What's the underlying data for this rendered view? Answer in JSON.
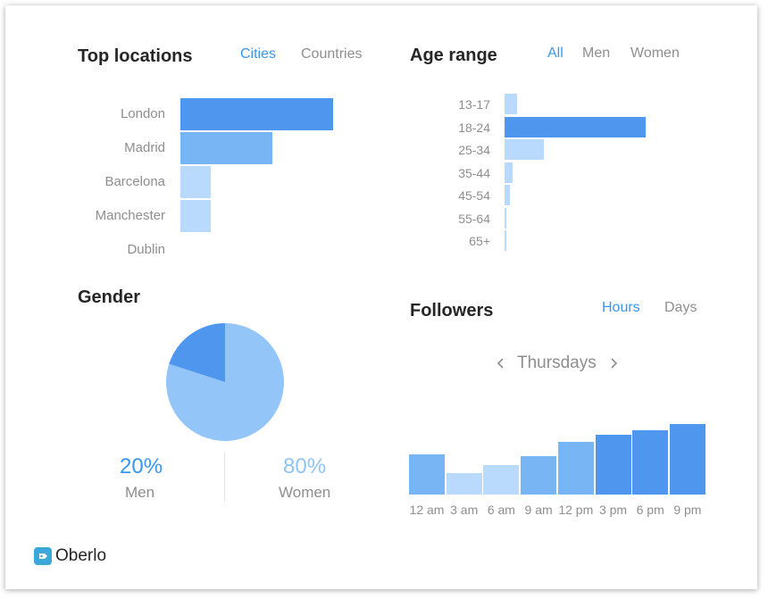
{
  "top_locations": {
    "title": "Top locations",
    "tabs": [
      {
        "label": "Cities",
        "active": true
      },
      {
        "label": "Countries",
        "active": false
      }
    ]
  },
  "age_range": {
    "title": "Age range",
    "tabs": [
      {
        "label": "All",
        "active": true
      },
      {
        "label": "Men",
        "active": false
      },
      {
        "label": "Women",
        "active": false
      }
    ]
  },
  "gender": {
    "title": "Gender",
    "men_pct": "20%",
    "men_label": "Men",
    "women_pct": "80%",
    "women_label": "Women"
  },
  "followers": {
    "title": "Followers",
    "tabs": [
      {
        "label": "Hours",
        "active": true
      },
      {
        "label": "Days",
        "active": false
      }
    ],
    "day": "Thursdays",
    "prev_icon": "chevron-left-icon",
    "next_icon": "chevron-right-icon"
  },
  "brand": {
    "name": "Oberlo",
    "icon": "tag-logo-icon",
    "color": "#3aa8d8"
  },
  "colors": {
    "accent": "#3897f0",
    "dark_blue": "#4f97ee",
    "mid_blue": "#78b5f5",
    "light_blue": "#b9dafc"
  },
  "chart_data": [
    {
      "type": "bar",
      "orientation": "horizontal",
      "categories": [
        "London",
        "Madrid",
        "Barcelona",
        "Manchester",
        "Dublin"
      ],
      "values": [
        100,
        60,
        20,
        20,
        0
      ],
      "title": "Top locations"
    },
    {
      "type": "bar",
      "orientation": "horizontal",
      "categories": [
        "13-17",
        "18-24",
        "25-34",
        "35-44",
        "45-54",
        "55-64",
        "65+"
      ],
      "values": [
        9,
        100,
        28,
        6,
        4,
        1,
        1
      ],
      "title": "Age range"
    },
    {
      "type": "pie",
      "categories": [
        "Men",
        "Women"
      ],
      "values": [
        20,
        80
      ],
      "title": "Gender"
    },
    {
      "type": "bar",
      "categories": [
        "12 am",
        "3 am",
        "6 am",
        "9 am",
        "12 pm",
        "3 pm",
        "6 pm",
        "9 pm"
      ],
      "values": [
        57,
        30,
        42,
        55,
        75,
        85,
        91,
        100
      ],
      "title": "Followers"
    }
  ]
}
